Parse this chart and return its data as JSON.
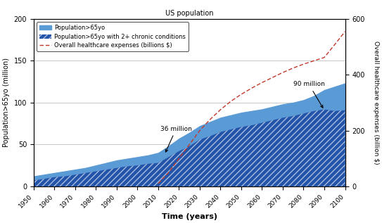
{
  "title": "US population",
  "xlabel": "Time (years)",
  "ylabel_left": "Population>65yo (million)",
  "ylabel_right": "Overall healthcare expenses (billion $)",
  "xlim": [
    1950,
    2100
  ],
  "ylim_left": [
    0,
    200
  ],
  "ylim_right": [
    0,
    600
  ],
  "years": [
    1950,
    1955,
    1960,
    1965,
    1970,
    1975,
    1980,
    1985,
    1990,
    1995,
    2000,
    2005,
    2010,
    2015,
    2020,
    2025,
    2030,
    2035,
    2040,
    2045,
    2050,
    2055,
    2060,
    2065,
    2070,
    2075,
    2080,
    2085,
    2090,
    2095,
    2100
  ],
  "pop_65": [
    12,
    14,
    16,
    18,
    20,
    22,
    25,
    28,
    31,
    33,
    35,
    37,
    40,
    48,
    57,
    64,
    72,
    77,
    82,
    85,
    88,
    90,
    92,
    95,
    98,
    100,
    103,
    108,
    115,
    119,
    123
  ],
  "pop_65_chronic": [
    7,
    9,
    11,
    12,
    14,
    16,
    18,
    20,
    22,
    24,
    25,
    27,
    28,
    35,
    42,
    48,
    56,
    60,
    65,
    68,
    71,
    73,
    76,
    79,
    82,
    84,
    87,
    90,
    92,
    90,
    91
  ],
  "healthcare_years": [
    2010,
    2015,
    2020,
    2025,
    2030,
    2035,
    2040,
    2045,
    2050,
    2055,
    2060,
    2065,
    2070,
    2075,
    2080,
    2085,
    2090,
    2095,
    2100
  ],
  "healthcare_expenses": [
    10,
    50,
    100,
    150,
    200,
    240,
    275,
    305,
    330,
    352,
    372,
    390,
    408,
    424,
    438,
    450,
    462,
    508,
    555
  ],
  "color_pop65": "#5b9bd5",
  "color_chronic": "#2255aa",
  "color_healthcare": "#c0392b",
  "xticks": [
    1950,
    1960,
    1970,
    1980,
    1990,
    2000,
    2010,
    2020,
    2030,
    2040,
    2050,
    2060,
    2070,
    2080,
    2090,
    2100
  ],
  "yticks_left": [
    0,
    50,
    100,
    150,
    200
  ],
  "yticks_right": [
    0,
    200,
    400,
    600
  ]
}
